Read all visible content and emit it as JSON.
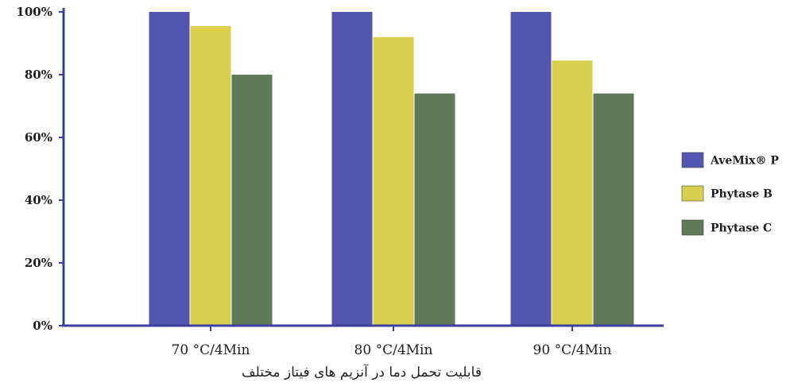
{
  "chart_data": {
    "type": "bar",
    "categories": [
      "70 °C/4Min",
      "80 °C/4Min",
      "90 °C/4Min"
    ],
    "series": [
      {
        "name": "AveMix® P",
        "color": "#5355b0",
        "values": [
          100,
          100,
          100
        ]
      },
      {
        "name": "Phytase B",
        "color": "#d8cf4c",
        "values": [
          95.5,
          92,
          84.5
        ]
      },
      {
        "name": "Phytase C",
        "color": "#5f7a56",
        "values": [
          80,
          74,
          74
        ]
      }
    ],
    "ylim": [
      0,
      100
    ],
    "yticks": [
      "0%",
      "20%",
      "40%",
      "60%",
      "80%",
      "100%"
    ],
    "xlabel": "قابلیت تحمل دما در آنزیم های فیتاز مختلف",
    "legend": "right",
    "axis_color": "#3a3fa0",
    "grid": false
  }
}
